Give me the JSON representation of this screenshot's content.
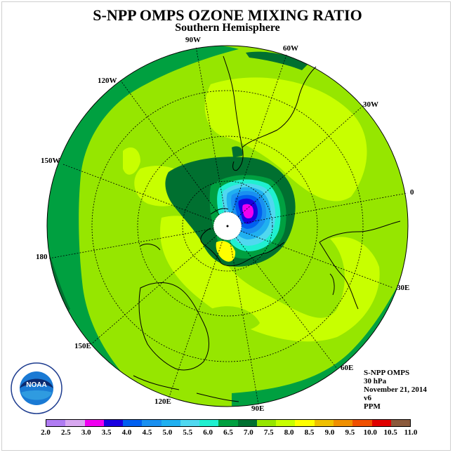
{
  "title": "S-NPP OMPS OZONE MIXING RATIO",
  "subtitle": "Southern Hemisphere",
  "longitude_labels": [
    "90W",
    "60W",
    "120W",
    "30W",
    "150W",
    "0",
    "180",
    "30E",
    "150E",
    "60E",
    "120E",
    "90E"
  ],
  "info": {
    "instrument": "S-NPP OMPS",
    "level": "30 hPa",
    "date": "November 21, 2014",
    "version": "v6",
    "units": "PPM"
  },
  "colorbar": {
    "labels": [
      "2.0",
      "2.5",
      "3.0",
      "3.5",
      "4.0",
      "4.5",
      "5.0",
      "5.5",
      "6.0",
      "6.5",
      "7.0",
      "7.5",
      "8.0",
      "8.5",
      "9.0",
      "9.5",
      "10.0",
      "10.5",
      "11.0"
    ],
    "colors": [
      "#b07cf2",
      "#d8a8f0",
      "#f000f0",
      "#1a00e0",
      "#0060f0",
      "#1a90f0",
      "#20b0f0",
      "#50d8f0",
      "#20f0d0",
      "#00a040",
      "#007030",
      "#96e600",
      "#c8ff00",
      "#ffff00",
      "#f0c000",
      "#f09000",
      "#f05000",
      "#e00000",
      "#8b5a3c"
    ]
  },
  "logo_text": "NOAA"
}
